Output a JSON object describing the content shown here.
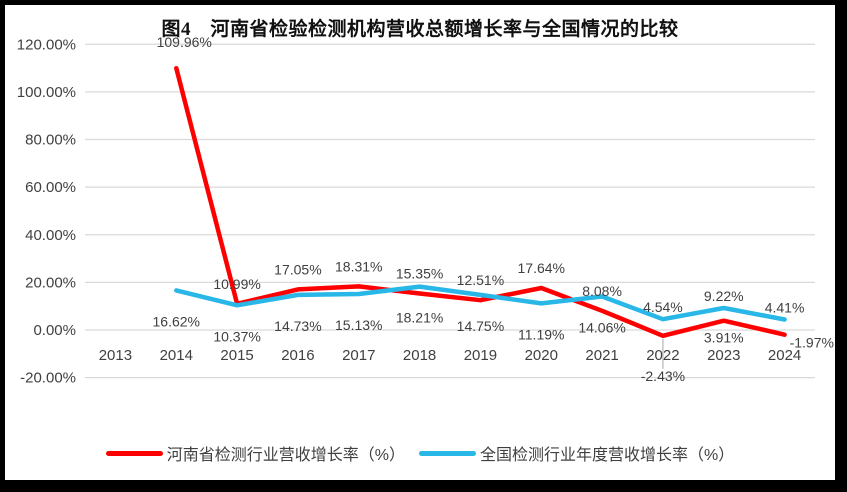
{
  "title": "图4　河南省检验检测机构营收总额增长率与全国情况的比较",
  "colors": {
    "henan_line": "#FF0000",
    "national_line": "#29B7E8",
    "gridline": "#D9D9D9",
    "axis_text": "#404040",
    "data_label_text": "#404040",
    "leader_line": "#A6A6A6",
    "frame": "#000000",
    "background": "#FFFFFF"
  },
  "chart_data": {
    "type": "line",
    "title": "图4　河南省检验检测机构营收总额增长率与全国情况的比较",
    "categories": [
      "2013",
      "2014",
      "2015",
      "2016",
      "2017",
      "2018",
      "2019",
      "2020",
      "2021",
      "2022",
      "2023",
      "2024"
    ],
    "series": [
      {
        "name": "河南省检测行业营收增长率（%）",
        "color": "#FF0000",
        "values": [
          null,
          109.96,
          10.99,
          17.05,
          18.31,
          15.35,
          12.51,
          17.64,
          8.08,
          -2.43,
          3.91,
          -1.97
        ],
        "labels": [
          null,
          "109.96%",
          "10.99%",
          "17.05%",
          "18.31%",
          "15.35%",
          "12.51%",
          "17.64%",
          "8.08%",
          "-2.43%",
          "3.91%",
          "-1.97%"
        ],
        "label_pos": [
          null,
          "above-far",
          "above",
          "above",
          "above",
          "above",
          "above",
          "above",
          "above",
          "leader",
          "below",
          "right"
        ]
      },
      {
        "name": "全国检测行业年度营收增长率（%）",
        "color": "#29B7E8",
        "values": [
          null,
          16.62,
          10.37,
          14.73,
          15.13,
          18.21,
          14.75,
          11.19,
          14.06,
          4.54,
          9.22,
          4.41
        ],
        "labels": [
          null,
          "16.62%",
          "10.37%",
          "14.73%",
          "15.13%",
          "18.21%",
          "14.75%",
          "11.19%",
          "14.06%",
          "4.54%",
          "9.22%",
          "4.41%"
        ],
        "label_pos": [
          null,
          "below-far",
          "below-far",
          "below-far",
          "below-far",
          "below-far",
          "below-far",
          "below-far",
          "below-far",
          "above-near",
          "above-near",
          "above-near"
        ]
      }
    ],
    "y_axis": {
      "ticks": [
        {
          "label": "120.00%",
          "value": 120
        },
        {
          "label": "100.00%",
          "value": 100
        },
        {
          "label": "80.00%",
          "value": 80
        },
        {
          "label": "60.00%",
          "value": 60
        },
        {
          "label": "40.00%",
          "value": 40
        },
        {
          "label": "20.00%",
          "value": 20
        },
        {
          "label": "0.00%",
          "value": 0
        },
        {
          "label": "-20.00%",
          "value": -20
        }
      ],
      "range": [
        -20,
        120
      ]
    },
    "xlabel": "",
    "ylabel": "",
    "grid": true,
    "legend_position": "bottom",
    "label_format": "0.00%"
  }
}
